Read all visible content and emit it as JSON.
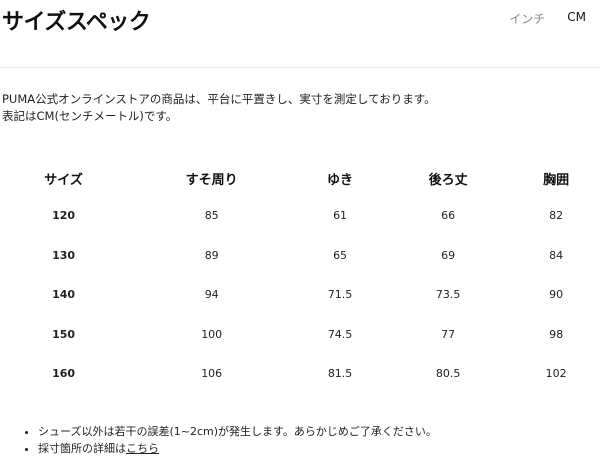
{
  "header": {
    "title": "サイズスペック",
    "units": [
      {
        "label": "インチ",
        "active": false
      },
      {
        "label": "CM",
        "active": true
      }
    ]
  },
  "description": [
    "PUMA公式オンラインストアの商品は、平台に平置きし、実寸を測定しております。",
    "表記はCM(センチメートル)です。"
  ],
  "table": {
    "columns": [
      "サイズ",
      "すそ周り",
      "ゆき",
      "後ろ丈",
      "胸囲"
    ],
    "rows": [
      [
        "120",
        "85",
        "61",
        "66",
        "82"
      ],
      [
        "130",
        "89",
        "65",
        "69",
        "84"
      ],
      [
        "140",
        "94",
        "71.5",
        "73.5",
        "90"
      ],
      [
        "150",
        "100",
        "74.5",
        "77",
        "98"
      ],
      [
        "160",
        "106",
        "81.5",
        "80.5",
        "102"
      ]
    ]
  },
  "notes": {
    "note1": "シューズ以外は若干の誤差(1~2cm)が発生します。あらかじめご了承ください。",
    "note2_prefix": "採寸箇所の詳細は",
    "note2_link": "こちら"
  }
}
